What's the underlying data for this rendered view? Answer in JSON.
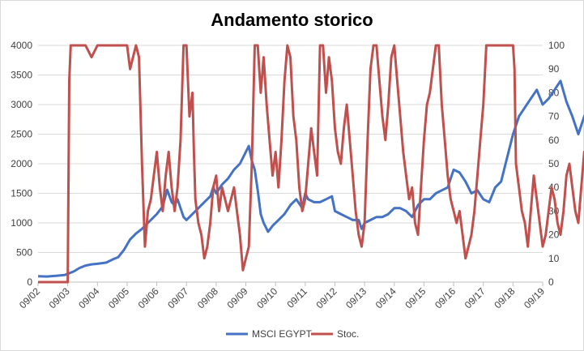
{
  "chart_data": {
    "type": "line",
    "title": "Andamento storico",
    "xlabel": "",
    "ylabel": "",
    "x_ticks": [
      "09/02",
      "09/03",
      "09/04",
      "09/05",
      "09/06",
      "09/07",
      "09/08",
      "09/09",
      "09/10",
      "09/11",
      "09/12",
      "09/13",
      "09/14",
      "09/15",
      "09/16",
      "09/17",
      "09/18",
      "09/19"
    ],
    "y_left": {
      "min": 0,
      "max": 4000,
      "ticks": [
        0,
        500,
        1000,
        1500,
        2000,
        2500,
        3000,
        3500,
        4000
      ]
    },
    "y_right": {
      "min": 0,
      "max": 100,
      "ticks": [
        0,
        10,
        20,
        30,
        40,
        50,
        60,
        70,
        80,
        90,
        100
      ]
    },
    "grid": "horizontal",
    "legend_position": "bottom",
    "colors": {
      "msci": "#4472c4",
      "stoc": "#c0504d",
      "grid": "#d9d9d9",
      "axis": "#bfbfbf"
    },
    "series": [
      {
        "name": "MSCI EGYPT",
        "axis": "left",
        "values": [
          [
            0,
            100
          ],
          [
            0.3,
            95
          ],
          [
            0.6,
            105
          ],
          [
            0.9,
            120
          ],
          [
            1.0,
            140
          ],
          [
            1.2,
            180
          ],
          [
            1.4,
            240
          ],
          [
            1.6,
            280
          ],
          [
            1.8,
            300
          ],
          [
            2.0,
            310
          ],
          [
            2.3,
            330
          ],
          [
            2.5,
            380
          ],
          [
            2.7,
            420
          ],
          [
            2.9,
            550
          ],
          [
            3.1,
            720
          ],
          [
            3.3,
            820
          ],
          [
            3.5,
            900
          ],
          [
            3.7,
            1000
          ],
          [
            3.9,
            1100
          ],
          [
            4.0,
            1150
          ],
          [
            4.2,
            1280
          ],
          [
            4.35,
            1560
          ],
          [
            4.5,
            1350
          ],
          [
            4.6,
            1300
          ],
          [
            4.7,
            1400
          ],
          [
            4.8,
            1250
          ],
          [
            4.9,
            1100
          ],
          [
            5.0,
            1050
          ],
          [
            5.2,
            1150
          ],
          [
            5.4,
            1250
          ],
          [
            5.6,
            1350
          ],
          [
            5.8,
            1450
          ],
          [
            5.9,
            1600
          ],
          [
            6.0,
            1500
          ],
          [
            6.2,
            1650
          ],
          [
            6.4,
            1750
          ],
          [
            6.6,
            1900
          ],
          [
            6.8,
            2000
          ],
          [
            7.0,
            2200
          ],
          [
            7.1,
            2300
          ],
          [
            7.2,
            2050
          ],
          [
            7.3,
            1900
          ],
          [
            7.4,
            1550
          ],
          [
            7.5,
            1150
          ],
          [
            7.6,
            1000
          ],
          [
            7.75,
            850
          ],
          [
            7.9,
            950
          ],
          [
            8.1,
            1050
          ],
          [
            8.3,
            1150
          ],
          [
            8.5,
            1300
          ],
          [
            8.7,
            1400
          ],
          [
            8.9,
            1250
          ],
          [
            9.0,
            1500
          ],
          [
            9.1,
            1400
          ],
          [
            9.3,
            1350
          ],
          [
            9.5,
            1350
          ],
          [
            9.7,
            1400
          ],
          [
            9.9,
            1450
          ],
          [
            10.0,
            1200
          ],
          [
            10.2,
            1150
          ],
          [
            10.4,
            1100
          ],
          [
            10.6,
            1050
          ],
          [
            10.8,
            1050
          ],
          [
            10.9,
            900
          ],
          [
            11.0,
            1000
          ],
          [
            11.2,
            1050
          ],
          [
            11.4,
            1100
          ],
          [
            11.6,
            1100
          ],
          [
            11.8,
            1150
          ],
          [
            12.0,
            1250
          ],
          [
            12.2,
            1250
          ],
          [
            12.4,
            1200
          ],
          [
            12.6,
            1100
          ],
          [
            12.8,
            1300
          ],
          [
            13.0,
            1400
          ],
          [
            13.2,
            1400
          ],
          [
            13.4,
            1500
          ],
          [
            13.6,
            1550
          ],
          [
            13.8,
            1600
          ],
          [
            14.0,
            1900
          ],
          [
            14.2,
            1850
          ],
          [
            14.4,
            1700
          ],
          [
            14.6,
            1500
          ],
          [
            14.8,
            1550
          ],
          [
            15.0,
            1400
          ],
          [
            15.2,
            1350
          ],
          [
            15.4,
            1600
          ],
          [
            15.6,
            1700
          ],
          [
            15.8,
            2100
          ],
          [
            16.0,
            2500
          ],
          [
            16.2,
            2800
          ],
          [
            16.4,
            2950
          ],
          [
            16.6,
            3100
          ],
          [
            16.8,
            3250
          ],
          [
            17.0,
            3000
          ],
          [
            17.2,
            3100
          ],
          [
            17.4,
            3250
          ],
          [
            17.6,
            3400
          ],
          [
            17.8,
            3050
          ],
          [
            18.0,
            2800
          ],
          [
            18.2,
            2500
          ],
          [
            18.4,
            2800
          ],
          [
            18.6,
            3000
          ],
          [
            18.8,
            2900
          ],
          [
            19.0,
            3100
          ]
        ]
      },
      {
        "name": "Stoc.",
        "axis": "right",
        "values": [
          [
            0,
            0
          ],
          [
            0.9,
            0
          ],
          [
            1.0,
            0
          ],
          [
            1.05,
            85
          ],
          [
            1.1,
            100
          ],
          [
            1.6,
            100
          ],
          [
            1.8,
            95
          ],
          [
            2.0,
            100
          ],
          [
            3.0,
            100
          ],
          [
            3.1,
            90
          ],
          [
            3.3,
            100
          ],
          [
            3.4,
            95
          ],
          [
            3.5,
            50
          ],
          [
            3.6,
            15
          ],
          [
            3.7,
            30
          ],
          [
            3.8,
            35
          ],
          [
            3.9,
            45
          ],
          [
            4.0,
            55
          ],
          [
            4.1,
            40
          ],
          [
            4.2,
            30
          ],
          [
            4.3,
            45
          ],
          [
            4.4,
            55
          ],
          [
            4.5,
            40
          ],
          [
            4.6,
            30
          ],
          [
            4.7,
            40
          ],
          [
            4.8,
            60
          ],
          [
            4.9,
            100
          ],
          [
            5.0,
            100
          ],
          [
            5.1,
            70
          ],
          [
            5.2,
            80
          ],
          [
            5.25,
            55
          ],
          [
            5.3,
            35
          ],
          [
            5.4,
            25
          ],
          [
            5.5,
            20
          ],
          [
            5.6,
            10
          ],
          [
            5.7,
            15
          ],
          [
            5.8,
            25
          ],
          [
            5.9,
            40
          ],
          [
            6.0,
            45
          ],
          [
            6.1,
            30
          ],
          [
            6.2,
            40
          ],
          [
            6.4,
            30
          ],
          [
            6.5,
            35
          ],
          [
            6.6,
            40
          ],
          [
            6.7,
            30
          ],
          [
            6.8,
            20
          ],
          [
            6.9,
            5
          ],
          [
            7.0,
            10
          ],
          [
            7.1,
            15
          ],
          [
            7.2,
            50
          ],
          [
            7.3,
            100
          ],
          [
            7.4,
            100
          ],
          [
            7.5,
            80
          ],
          [
            7.6,
            95
          ],
          [
            7.7,
            75
          ],
          [
            7.8,
            60
          ],
          [
            7.9,
            45
          ],
          [
            8.0,
            55
          ],
          [
            8.1,
            40
          ],
          [
            8.2,
            60
          ],
          [
            8.3,
            85
          ],
          [
            8.4,
            100
          ],
          [
            8.5,
            95
          ],
          [
            8.6,
            70
          ],
          [
            8.7,
            60
          ],
          [
            8.8,
            40
          ],
          [
            8.9,
            30
          ],
          [
            9.0,
            35
          ],
          [
            9.1,
            50
          ],
          [
            9.2,
            65
          ],
          [
            9.3,
            55
          ],
          [
            9.4,
            45
          ],
          [
            9.5,
            100
          ],
          [
            9.6,
            100
          ],
          [
            9.7,
            80
          ],
          [
            9.8,
            95
          ],
          [
            9.9,
            85
          ],
          [
            10.0,
            65
          ],
          [
            10.1,
            55
          ],
          [
            10.2,
            50
          ],
          [
            10.3,
            65
          ],
          [
            10.4,
            75
          ],
          [
            10.5,
            60
          ],
          [
            10.6,
            45
          ],
          [
            10.7,
            30
          ],
          [
            10.8,
            20
          ],
          [
            10.9,
            15
          ],
          [
            11.0,
            25
          ],
          [
            11.1,
            60
          ],
          [
            11.2,
            90
          ],
          [
            11.3,
            100
          ],
          [
            11.4,
            100
          ],
          [
            11.5,
            85
          ],
          [
            11.6,
            70
          ],
          [
            11.7,
            60
          ],
          [
            11.8,
            75
          ],
          [
            11.9,
            95
          ],
          [
            12.0,
            100
          ],
          [
            12.1,
            85
          ],
          [
            12.2,
            70
          ],
          [
            12.3,
            55
          ],
          [
            12.4,
            45
          ],
          [
            12.5,
            35
          ],
          [
            12.6,
            40
          ],
          [
            12.7,
            25
          ],
          [
            12.8,
            20
          ],
          [
            12.9,
            40
          ],
          [
            13.0,
            60
          ],
          [
            13.1,
            75
          ],
          [
            13.2,
            80
          ],
          [
            13.3,
            90
          ],
          [
            13.4,
            100
          ],
          [
            13.5,
            100
          ],
          [
            13.6,
            75
          ],
          [
            13.7,
            60
          ],
          [
            13.8,
            45
          ],
          [
            13.9,
            35
          ],
          [
            14.0,
            30
          ],
          [
            14.1,
            25
          ],
          [
            14.2,
            30
          ],
          [
            14.3,
            20
          ],
          [
            14.4,
            10
          ],
          [
            14.5,
            15
          ],
          [
            14.6,
            20
          ],
          [
            14.7,
            30
          ],
          [
            14.8,
            45
          ],
          [
            14.9,
            60
          ],
          [
            15.0,
            75
          ],
          [
            15.1,
            100
          ],
          [
            15.2,
            100
          ],
          [
            15.9,
            100
          ],
          [
            16.0,
            100
          ],
          [
            16.05,
            90
          ],
          [
            16.1,
            50
          ],
          [
            16.2,
            40
          ],
          [
            16.3,
            30
          ],
          [
            16.4,
            25
          ],
          [
            16.5,
            15
          ],
          [
            16.6,
            30
          ],
          [
            16.7,
            45
          ],
          [
            16.8,
            35
          ],
          [
            16.9,
            25
          ],
          [
            17.0,
            15
          ],
          [
            17.1,
            20
          ],
          [
            17.2,
            30
          ],
          [
            17.3,
            40
          ],
          [
            17.4,
            35
          ],
          [
            17.5,
            25
          ],
          [
            17.6,
            20
          ],
          [
            17.7,
            30
          ],
          [
            17.8,
            45
          ],
          [
            17.9,
            50
          ],
          [
            18.0,
            40
          ],
          [
            18.1,
            30
          ],
          [
            18.2,
            25
          ],
          [
            18.3,
            40
          ],
          [
            18.4,
            55
          ],
          [
            18.5,
            45
          ],
          [
            18.6,
            30
          ],
          [
            18.7,
            40
          ],
          [
            18.8,
            70
          ],
          [
            18.9,
            85
          ],
          [
            19.0,
            90
          ]
        ]
      }
    ]
  }
}
